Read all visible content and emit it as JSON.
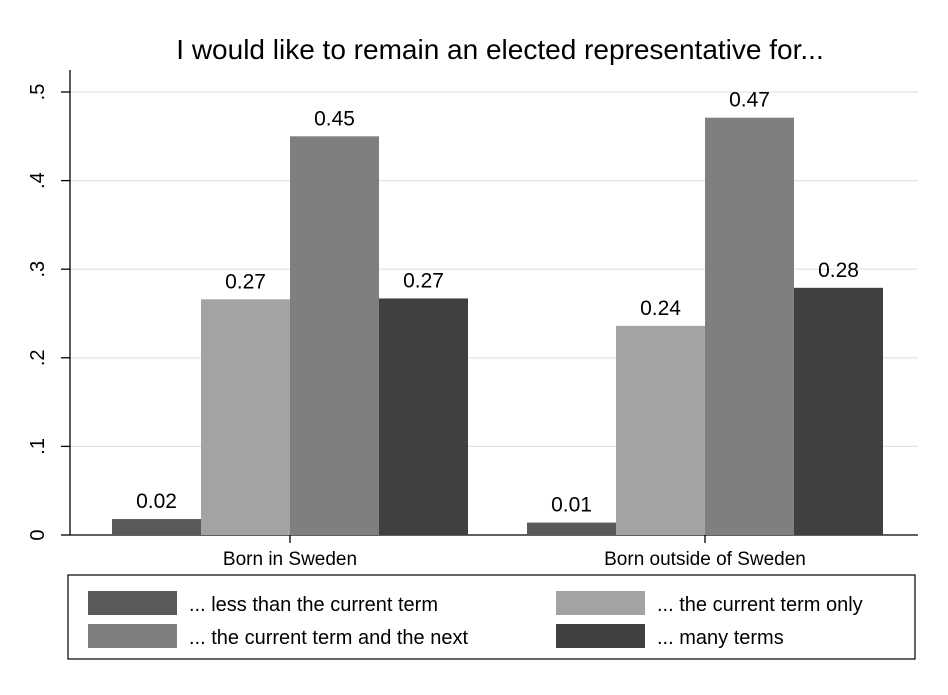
{
  "chart_data": {
    "type": "bar",
    "title": "I would like to remain an elected representative for...",
    "categories": [
      "Born in Sweden",
      "Born outside of Sweden"
    ],
    "series": [
      {
        "name": "... less than the current term",
        "values": [
          0.018,
          0.014
        ],
        "labels": [
          "0.02",
          "0.01"
        ],
        "color": "#5a5a5a"
      },
      {
        "name": "... the current term only",
        "values": [
          0.266,
          0.236
        ],
        "labels": [
          "0.27",
          "0.24"
        ],
        "color": "#a3a3a3"
      },
      {
        "name": "... the current term and the next",
        "values": [
          0.45,
          0.471
        ],
        "labels": [
          "0.45",
          "0.47"
        ],
        "color": "#7f7f7f"
      },
      {
        "name": "... many terms",
        "values": [
          0.267,
          0.279
        ],
        "labels": [
          "0.27",
          "0.28"
        ],
        "color": "#404040"
      }
    ],
    "yticks": [
      0,
      0.1,
      0.2,
      0.3,
      0.4,
      0.5
    ],
    "ytick_labels": [
      "0",
      ".1",
      ".2",
      ".3",
      ".4",
      ".5"
    ],
    "ylim": [
      0,
      0.5
    ],
    "grid": true,
    "legend_position": "bottom"
  }
}
